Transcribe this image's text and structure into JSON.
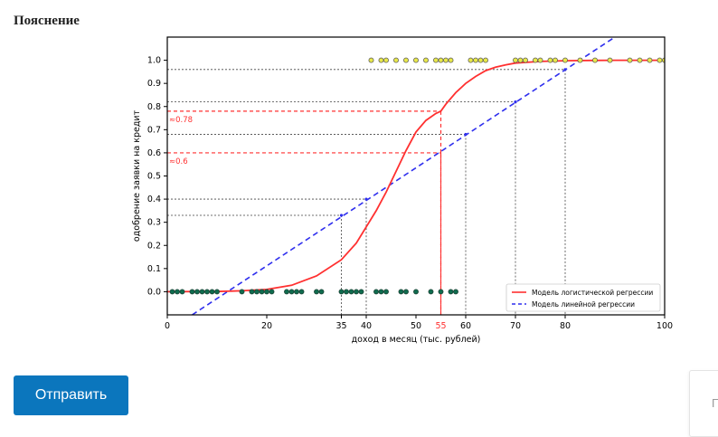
{
  "page": {
    "heading": "Пояснение",
    "submit_label": "Отправить",
    "side_panel_text": "П"
  },
  "colors": {
    "logistic": "#ff3030",
    "linear": "#2f2fee",
    "accepted_fill": "#e8e84a",
    "rejected_fill": "#0f6b4e",
    "reference_line": "#444444",
    "button": "#0b76bd"
  },
  "chart_data": {
    "type": "line",
    "title": "",
    "xlabel": "доход в месяц (тыс. рублей)",
    "ylabel": "одобрение заявки на кредит",
    "xlim": [
      0,
      100
    ],
    "ylim": [
      -0.1,
      1.1
    ],
    "x_ticks": [
      "0",
      "20",
      "35",
      "40",
      "50",
      "60",
      "70",
      "80",
      "100"
    ],
    "x_tick_values": [
      0,
      20,
      35,
      40,
      50,
      60,
      70,
      80,
      100
    ],
    "y_ticks": [
      "0.0",
      "0.1",
      "0.2",
      "0.3",
      "0.4",
      "0.5",
      "0.6",
      "0.7",
      "0.8",
      "0.9",
      "1.0"
    ],
    "y_tick_values": [
      0.0,
      0.1,
      0.2,
      0.3,
      0.4,
      0.5,
      0.6,
      0.7,
      0.8,
      0.9,
      1.0
    ],
    "legend_position": "bottom-right",
    "grid": false,
    "series": [
      {
        "name": "Модель логистической регрессии",
        "kind": "logistic",
        "style": "solid",
        "x": [
          0,
          10,
          15,
          20,
          25,
          30,
          35,
          38,
          40,
          42,
          44,
          46,
          48,
          50,
          52,
          54,
          55,
          56,
          58,
          60,
          62,
          64,
          66,
          68,
          70,
          75,
          80,
          85,
          90,
          100
        ],
        "y": [
          0.0,
          0.001,
          0.004,
          0.01,
          0.028,
          0.068,
          0.138,
          0.21,
          0.28,
          0.35,
          0.43,
          0.52,
          0.61,
          0.69,
          0.74,
          0.77,
          0.78,
          0.81,
          0.86,
          0.9,
          0.93,
          0.955,
          0.97,
          0.98,
          0.988,
          0.995,
          0.998,
          0.999,
          1.0,
          1.0
        ]
      },
      {
        "name": "Модель линейной регрессии",
        "kind": "linear",
        "style": "dashed",
        "x": [
          5,
          90
        ],
        "y": [
          -0.1,
          1.1
        ]
      }
    ],
    "points_accepted": {
      "y": 1.0,
      "x": [
        41,
        43,
        44,
        46,
        48,
        50,
        52,
        54,
        55,
        56,
        57,
        61,
        62,
        63,
        64,
        70,
        71,
        72,
        74,
        75,
        77,
        78,
        80,
        83,
        86,
        89,
        93,
        95,
        97,
        99,
        100
      ]
    },
    "points_rejected": {
      "y": 0.0,
      "x": [
        1,
        2,
        3,
        5,
        6,
        7,
        8,
        9,
        10,
        15,
        17,
        18,
        19,
        20,
        21,
        24,
        25,
        26,
        27,
        30,
        31,
        35,
        36,
        37,
        38,
        39,
        42,
        43,
        44,
        47,
        48,
        50,
        53,
        55,
        57,
        58
      ]
    },
    "reference_lines": [
      {
        "x": 35,
        "y": 0.33,
        "color": "black"
      },
      {
        "x": 40,
        "y": 0.4,
        "color": "black"
      },
      {
        "x": 60,
        "y": 0.68,
        "color": "black"
      },
      {
        "x": 70,
        "y": 0.82,
        "color": "black"
      },
      {
        "x": 80,
        "y": 0.96,
        "color": "black"
      },
      {
        "x": 55,
        "y": 0.78,
        "color": "red"
      },
      {
        "x": 55,
        "y": 0.6,
        "color": "red"
      }
    ],
    "annotations": [
      {
        "text": "≈0.78",
        "y": 0.78
      },
      {
        "text": "≈0.6",
        "y": 0.6
      },
      {
        "text": "55",
        "x": 55
      }
    ]
  }
}
